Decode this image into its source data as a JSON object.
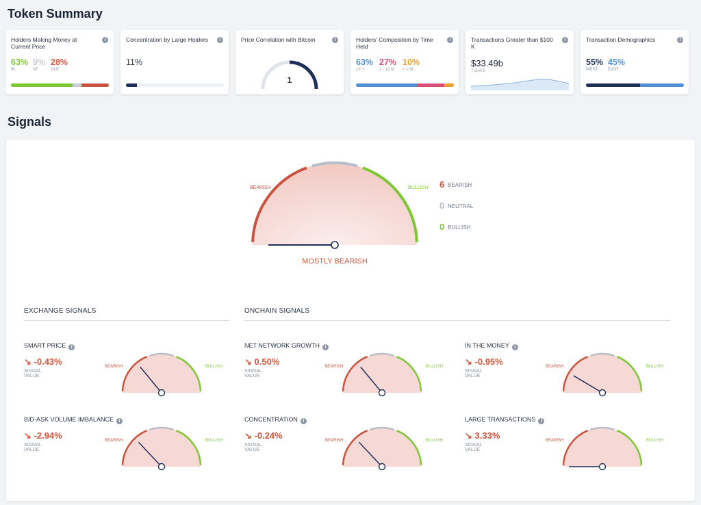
{
  "token_summary": {
    "title": "Token Summary",
    "cards": {
      "money": {
        "title": "Holders Making Money at Current Price",
        "in_pct": "63%",
        "in_lbl": "IN",
        "at_pct": "9%",
        "at_lbl": "AT",
        "out_pct": "28%",
        "out_lbl": "OUT",
        "fractions": [
          0.63,
          0.09,
          0.28
        ]
      },
      "concentration": {
        "title": "Concentration by Large Holders",
        "value": "11%",
        "fraction": 0.11
      },
      "correlation": {
        "title": "Price Correlation with Bitcoin",
        "value": "1",
        "fraction": 1.0
      },
      "composition": {
        "title": "Holders' Composition by Time Held",
        "a_pct": "63%",
        "a_lbl": "1Y +",
        "b_pct": "27%",
        "b_lbl": "1 - 12 M",
        "c_pct": "10%",
        "c_lbl": "< 1 M",
        "fractions": [
          0.63,
          0.27,
          0.1
        ]
      },
      "transactions": {
        "title": "Transactions Greater than $100 K",
        "value": "$33.49b",
        "sub": "7 DAYS"
      },
      "demographics": {
        "title": "Transaction Demographics",
        "west_pct": "55%",
        "west_lbl": "WEST",
        "east_pct": "45%",
        "east_lbl": "EAST",
        "fractions": [
          0.55,
          0.45
        ]
      }
    }
  },
  "signals": {
    "title": "Signals",
    "summary": {
      "bearish_count": "6",
      "bearish_label": "BEARISH",
      "neutral_count": "0",
      "neutral_label": "NEUTRAL",
      "bullish_count": "0",
      "bullish_label": "BULLISH",
      "gauge_left": "BEARISH",
      "gauge_right": "BULLISH",
      "verdict": "MOSTLY BEARISH",
      "needle_level": 0.0
    },
    "exchange_title": "EXCHANGE SIGNALS",
    "onchain_title": "ONCHAIN SIGNALS",
    "value_label": "SIGNAL VALUE",
    "gauge_left": "BEARISH",
    "gauge_right": "BULLISH",
    "items": [
      {
        "name": "SMART PRICE",
        "value": "-0.43%",
        "level": 0.28
      },
      {
        "name": "NET NETWORK GROWTH",
        "value": "0.50%",
        "level": 0.28
      },
      {
        "name": "IN THE MONEY",
        "value": "-0.95%",
        "level": 0.17
      },
      {
        "name": "BID-ASK VOLUME IMBALANCE",
        "value": "-2.94%",
        "level": 0.26
      },
      {
        "name": "CONCENTRATION",
        "value": "-0.24%",
        "level": 0.26
      },
      {
        "name": "LARGE TRANSACTIONS",
        "value": "3.33%",
        "level": 0.0
      }
    ]
  },
  "colors": {
    "green": "#7dc832",
    "grey": "#c9ccd3",
    "red": "#c8533f",
    "navy": "#1f2f5a",
    "blue": "#4f8fd3",
    "pink": "#d94d74",
    "orange": "#e6a12c",
    "text_red": "#d2573d"
  }
}
